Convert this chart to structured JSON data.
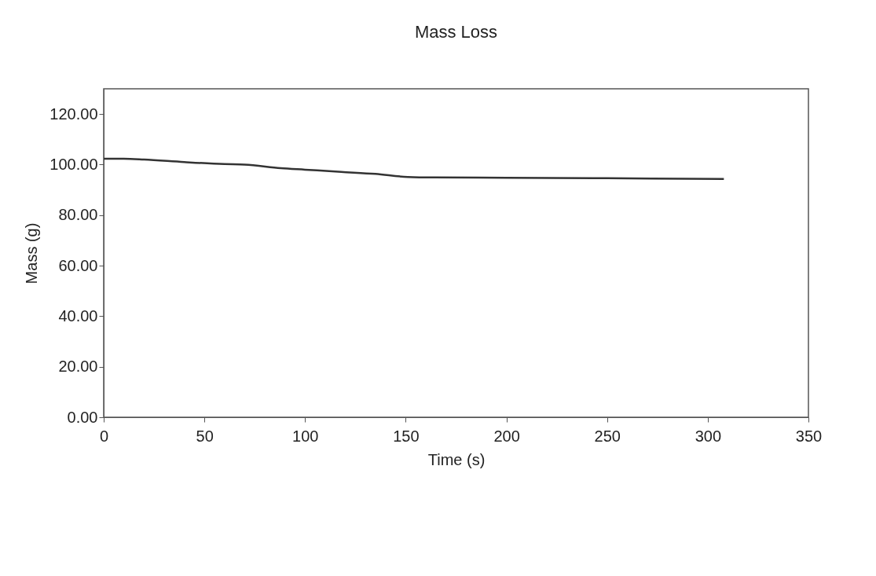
{
  "chart_data": {
    "type": "line",
    "title": "Mass Loss",
    "xlabel": "Time (s)",
    "ylabel": "Mass (g)",
    "x": [
      0,
      10,
      20,
      40,
      60,
      70,
      88,
      100,
      118,
      135,
      151,
      164,
      200,
      250,
      308
    ],
    "series": [
      {
        "color": "#333333",
        "values": [
          102.3,
          102.3,
          102.0,
          101.0,
          100.2,
          100.0,
          98.6,
          98.0,
          97.1,
          96.3,
          95.1,
          94.9,
          94.8,
          94.6,
          94.3
        ]
      }
    ],
    "xlim": [
      0,
      350
    ],
    "xticks": [
      0,
      50,
      100,
      150,
      200,
      250,
      300,
      350
    ],
    "ylim": [
      0,
      130
    ],
    "yticks": [
      {
        "value": 0,
        "label": "0.00"
      },
      {
        "value": 20,
        "label": "20.00"
      },
      {
        "value": 40,
        "label": "40.00"
      },
      {
        "value": 60,
        "label": "60.00"
      },
      {
        "value": 80,
        "label": "80.00"
      },
      {
        "value": 100,
        "label": "100.00"
      },
      {
        "value": 120,
        "label": "120.00"
      }
    ],
    "grid": false
  }
}
